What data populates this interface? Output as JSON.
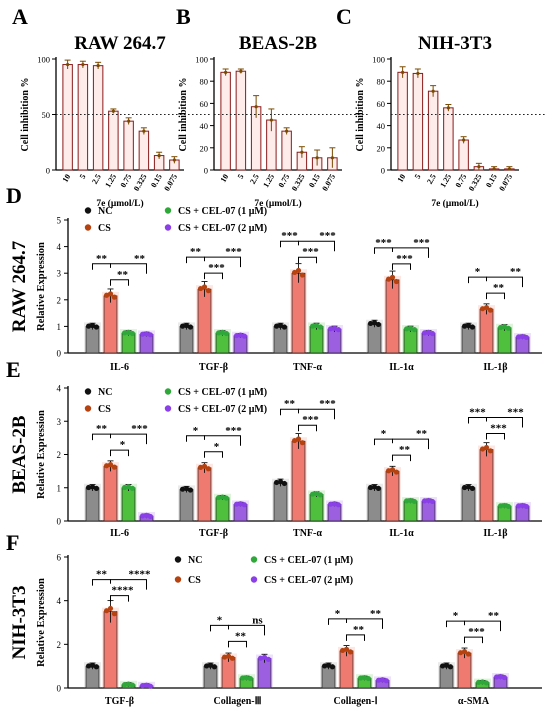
{
  "chart_data": [
    {
      "type": "bar",
      "panel": "A",
      "title": "RAW 264.7",
      "xlabel": "7e (μmol/L)",
      "ylabel": "Cell inhibition %",
      "ylim": [
        0,
        100
      ],
      "yticks": [
        "0",
        "50",
        "100"
      ],
      "reference_line": 50,
      "categories": [
        "10",
        "5",
        "2.5",
        "1.25",
        "0.75",
        "0.325",
        "0.15",
        "0.075"
      ],
      "values": [
        95,
        95,
        94,
        53,
        44,
        35,
        13,
        9
      ],
      "errors": [
        4,
        3,
        3,
        2,
        3,
        3,
        3,
        3
      ],
      "colors": {
        "bar_fill": "#fdecea",
        "bar_edge": "#8b1a1a",
        "error": "#7a4a00"
      }
    },
    {
      "type": "bar",
      "panel": "B",
      "title": "BEAS-2B",
      "xlabel": "7e (μmol/L)",
      "ylabel": "Cell inhibition %",
      "ylim": [
        0,
        100
      ],
      "yticks": [
        "0",
        "20",
        "40",
        "60",
        "80",
        "100"
      ],
      "reference_line": 50,
      "categories": [
        "10",
        "5",
        "2.5",
        "1.25",
        "0.75",
        "0.325",
        "0.15",
        "0.075"
      ],
      "values": [
        88,
        89,
        57,
        45,
        35,
        16,
        11,
        11
      ],
      "errors": [
        3,
        2,
        10,
        10,
        3,
        5,
        7,
        9
      ],
      "colors": {
        "bar_fill": "#fdecea",
        "bar_edge": "#8b1a1a",
        "error": "#7a4a00"
      }
    },
    {
      "type": "bar",
      "panel": "C",
      "title": "NIH-3T3",
      "xlabel": "7e (μmol/L)",
      "ylabel": "Cell inhibition %",
      "ylim": [
        0,
        100
      ],
      "yticks": [
        "0",
        "20",
        "40",
        "60",
        "80",
        "100"
      ],
      "reference_line": 50,
      "categories": [
        "10",
        "5",
        "2.5",
        "1.25",
        "0.75",
        "0.325",
        "0.15",
        "0.075"
      ],
      "values": [
        88,
        87,
        71,
        56,
        27,
        3,
        1,
        1
      ],
      "errors": [
        5,
        4,
        5,
        3,
        3,
        3,
        2,
        2
      ],
      "colors": {
        "bar_fill": "#fdecea",
        "bar_edge": "#8b1a1a",
        "error": "#7a4a00"
      }
    },
    {
      "type": "bar",
      "panel": "D",
      "title": "RAW 264.7",
      "ylabel": "Relative Expression",
      "ylim": [
        0,
        5
      ],
      "yticks": [
        "0",
        "1",
        "2",
        "3",
        "4",
        "5"
      ],
      "categories": [
        "IL-6",
        "TGF-β",
        "TNF-α",
        "IL-1α",
        "IL-1β"
      ],
      "series": [
        {
          "name": "NC",
          "values": [
            1.0,
            1.0,
            1.0,
            1.1,
            1.0
          ]
        },
        {
          "name": "CS",
          "values": [
            2.15,
            2.4,
            3.0,
            2.75,
            1.65
          ]
        },
        {
          "name": "CS + CEL-07 (1 μM)",
          "values": [
            0.75,
            0.75,
            1.0,
            0.9,
            0.95
          ]
        },
        {
          "name": "CS + CEL-07 (2 μM)",
          "values": [
            0.7,
            0.65,
            0.9,
            0.75,
            0.6
          ]
        }
      ],
      "significance": [
        [
          "**",
          "**",
          "**"
        ],
        [
          "**",
          "***",
          "***"
        ],
        [
          "***",
          "***",
          "***"
        ],
        [
          "***",
          "***",
          "***"
        ],
        [
          "*",
          "**",
          "**"
        ]
      ],
      "legend_position": "top"
    },
    {
      "type": "bar",
      "panel": "E",
      "title": "BEAS-2B",
      "ylabel": "Relative Expression",
      "ylim": [
        0,
        4
      ],
      "yticks": [
        "0",
        "1",
        "2",
        "3",
        "4"
      ],
      "categories": [
        "IL-6",
        "TGF-β",
        "TNF-α",
        "IL-1α",
        "IL-1β"
      ],
      "series": [
        {
          "name": "NC",
          "values": [
            1.0,
            0.95,
            1.15,
            1.0,
            1.0
          ]
        },
        {
          "name": "CS",
          "values": [
            1.65,
            1.6,
            2.4,
            1.5,
            2.15
          ]
        },
        {
          "name": "CS + CEL-07 (1 μM)",
          "values": [
            1.0,
            0.7,
            0.8,
            0.6,
            0.45
          ]
        },
        {
          "name": "CS + CEL-07 (2 μM)",
          "values": [
            0.15,
            0.5,
            0.5,
            0.6,
            0.45
          ]
        }
      ],
      "significance": [
        [
          "**",
          "*",
          "***"
        ],
        [
          "*",
          "*",
          "***"
        ],
        [
          "**",
          "***",
          "***"
        ],
        [
          "*",
          "**",
          "**"
        ],
        [
          "***",
          "***",
          "***"
        ]
      ],
      "legend_position": "top"
    },
    {
      "type": "bar",
      "panel": "F",
      "title": "NIH-3T3",
      "ylabel": "Relative Expression",
      "ylim": [
        0,
        6
      ],
      "yticks": [
        "0",
        "2",
        "4",
        "6"
      ],
      "categories": [
        "TGF-β",
        "Collagen-Ⅲ",
        "Collagen-Ⅰ",
        "α-SMA"
      ],
      "series": [
        {
          "name": "NC",
          "values": [
            1.0,
            1.0,
            1.0,
            1.0
          ]
        },
        {
          "name": "CS",
          "values": [
            3.5,
            1.4,
            1.7,
            1.6
          ]
        },
        {
          "name": "CS + CEL-07 (1 μM)",
          "values": [
            0.15,
            0.45,
            0.45,
            0.25
          ]
        },
        {
          "name": "CS + CEL-07 (2 μM)",
          "values": [
            0.1,
            1.35,
            0.35,
            0.5
          ]
        }
      ],
      "significance": [
        [
          "**",
          "****",
          "****"
        ],
        [
          "*",
          "**",
          "ns"
        ],
        [
          "*",
          "**",
          "**"
        ],
        [
          "*",
          "***",
          "**"
        ]
      ],
      "legend_position": "top"
    }
  ],
  "colors": {
    "NC": "#8c8c8c",
    "CS": "#ef7b70",
    "CS + CEL-07 (1 μM)": "#4fbf3e",
    "CS + CEL-07 (2 μM)": "#9b5fe0"
  },
  "dot_colors": {
    "NC": "#111111",
    "CS": "#b5420f",
    "CS + CEL-07 (1 μM)": "#2fa83a",
    "CS + CEL-07 (2 μM)": "#8a3fe8"
  }
}
